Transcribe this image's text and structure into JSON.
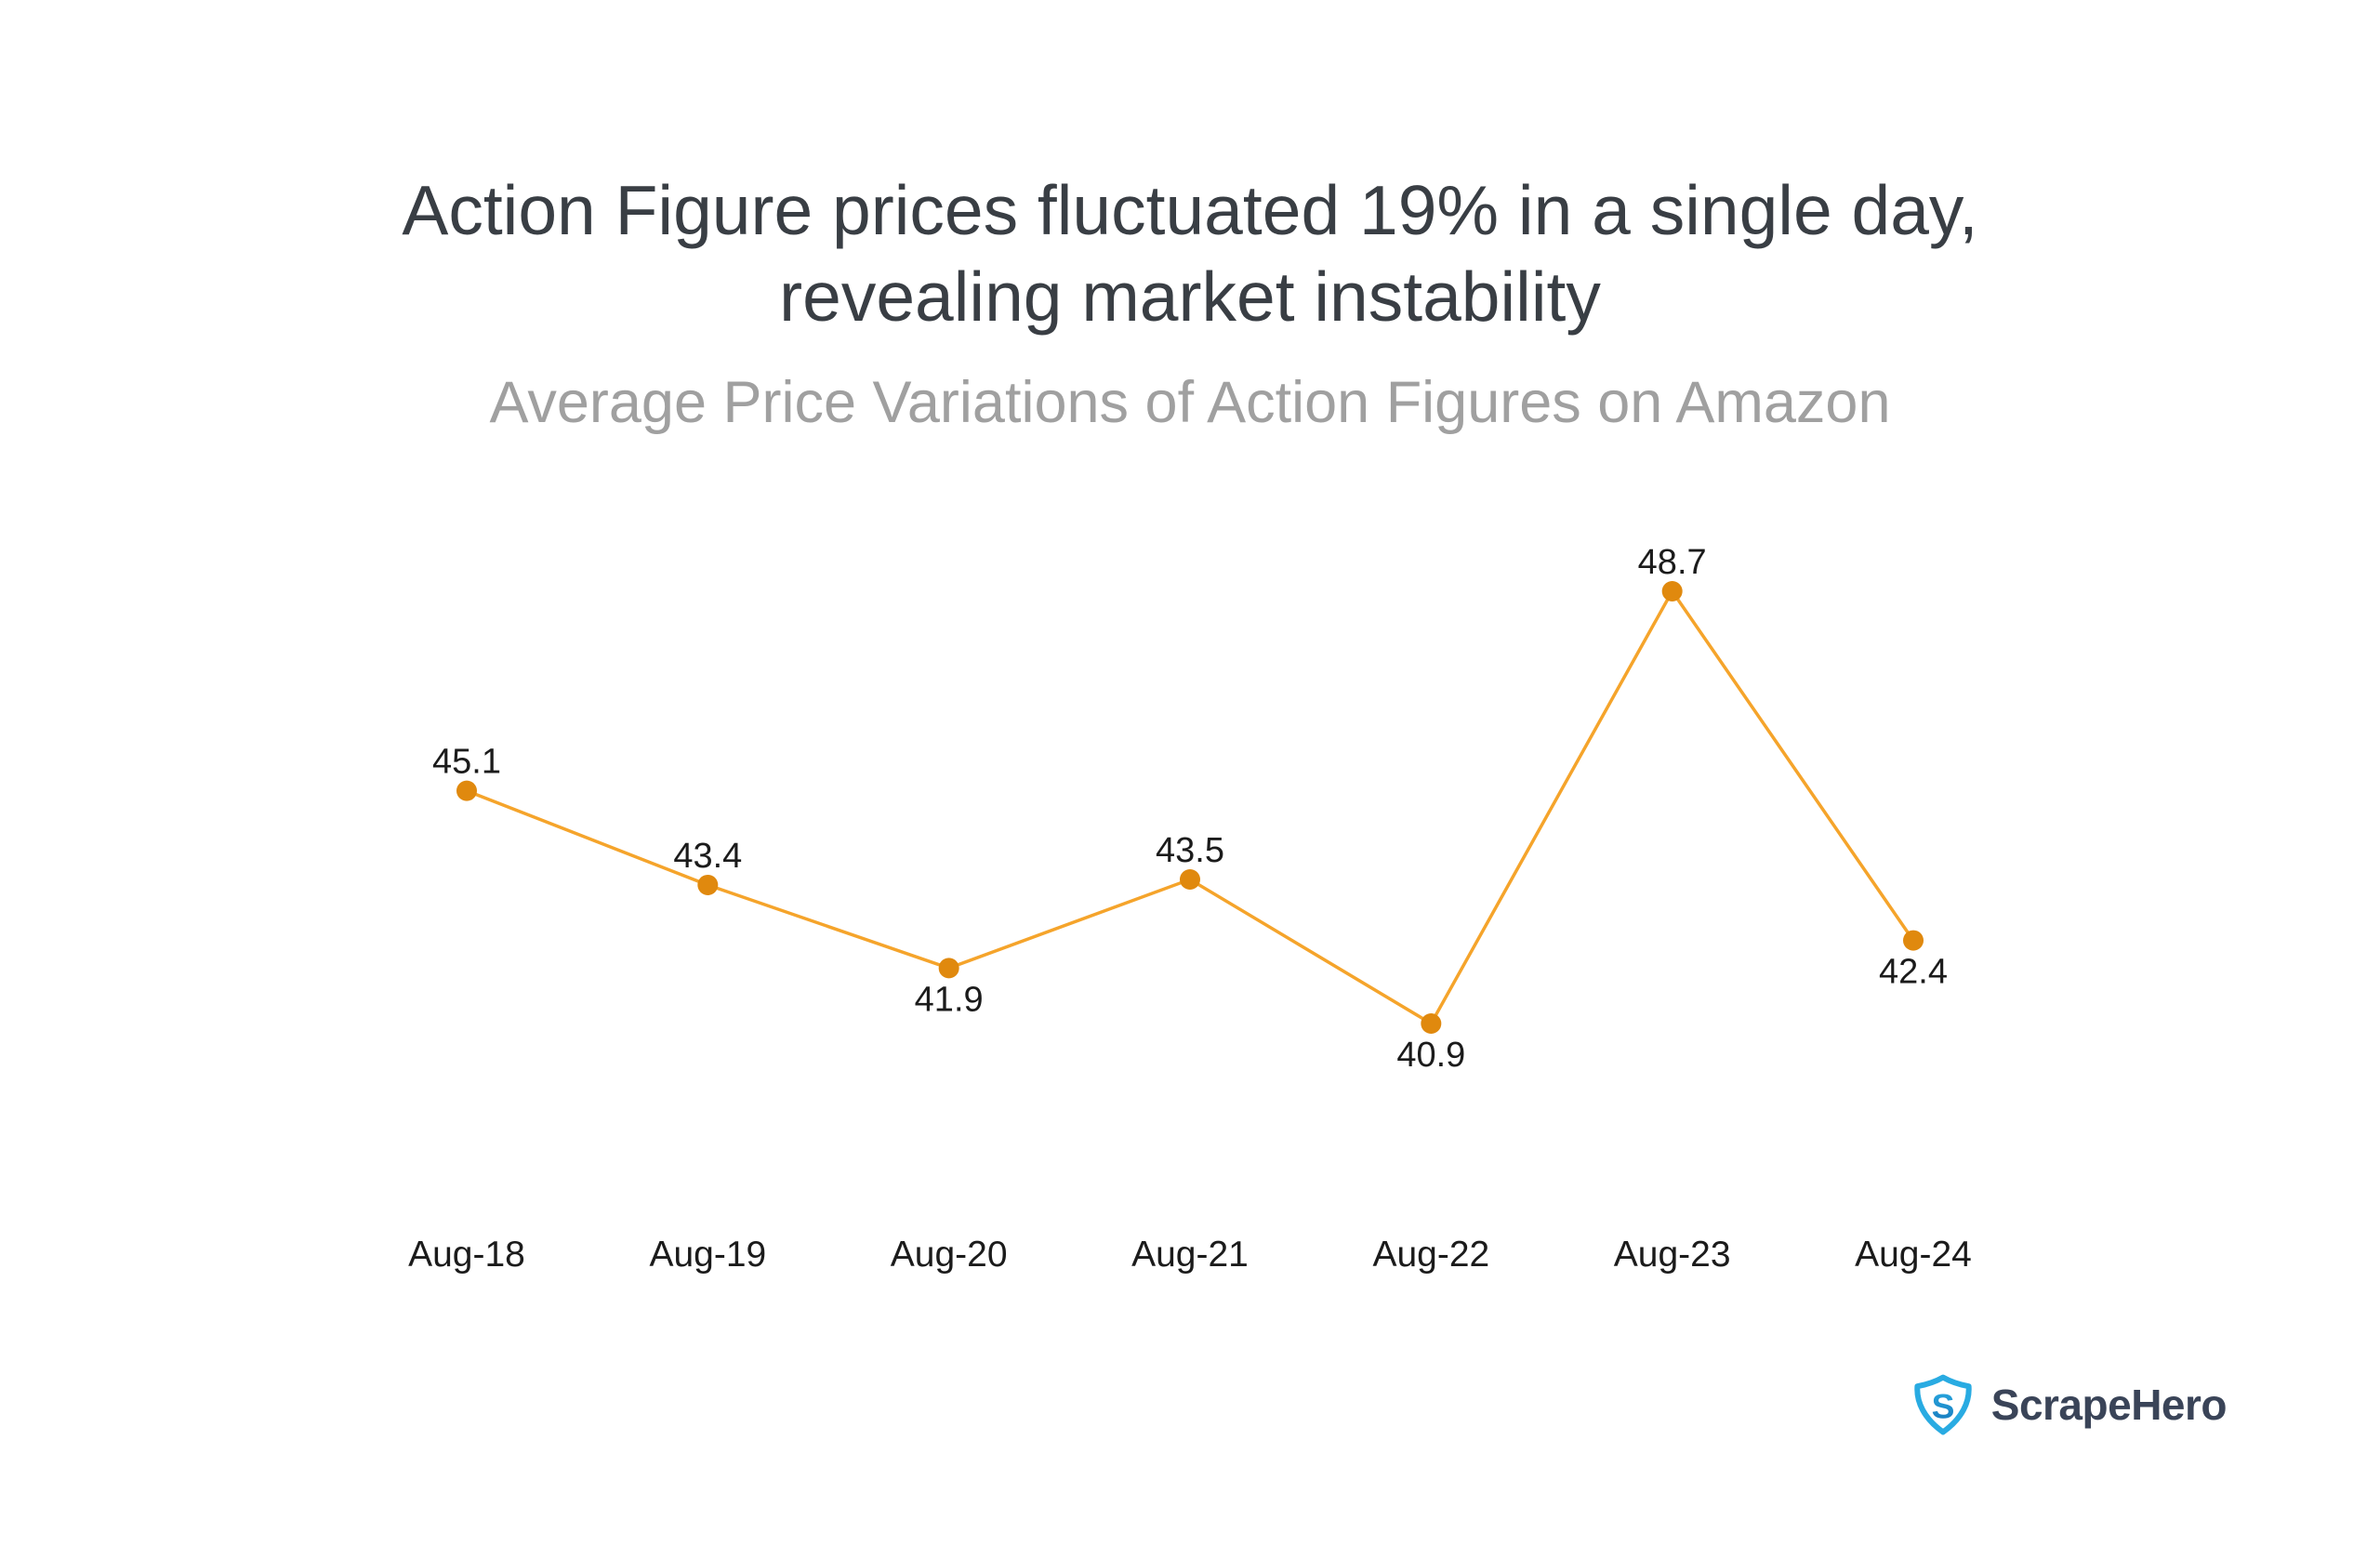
{
  "chart_data": {
    "type": "line",
    "title": "Action Figure prices fluctuated 19% in a single day, revealing market instability",
    "subtitle": "Average Price Variations of Action Figures on Amazon",
    "categories": [
      "Aug-18",
      "Aug-19",
      "Aug-20",
      "Aug-21",
      "Aug-22",
      "Aug-23",
      "Aug-24"
    ],
    "values": [
      45.1,
      43.4,
      41.9,
      43.5,
      40.9,
      48.7,
      42.4
    ],
    "value_label_positions": [
      "above",
      "above",
      "below",
      "above",
      "below",
      "above",
      "below"
    ],
    "xlabel": "",
    "ylabel": "",
    "ylim": [
      40.9,
      48.7
    ],
    "grid": false,
    "legend": "none",
    "axes_hidden": true,
    "title_color": "#393E44",
    "subtitle_color": "#A0A0A0",
    "line_color": "#F5A42B",
    "marker_color": "#E0890E",
    "value_label_color": "#1B1B1B",
    "axis_label_color": "#1B1B1B"
  },
  "branding": {
    "name": "ScrapeHero",
    "logo_icon": "shield-s-icon",
    "text_color": "#3A4458",
    "shield_blue": "#29ABE2",
    "shield_blue_dark": "#1778BC"
  }
}
